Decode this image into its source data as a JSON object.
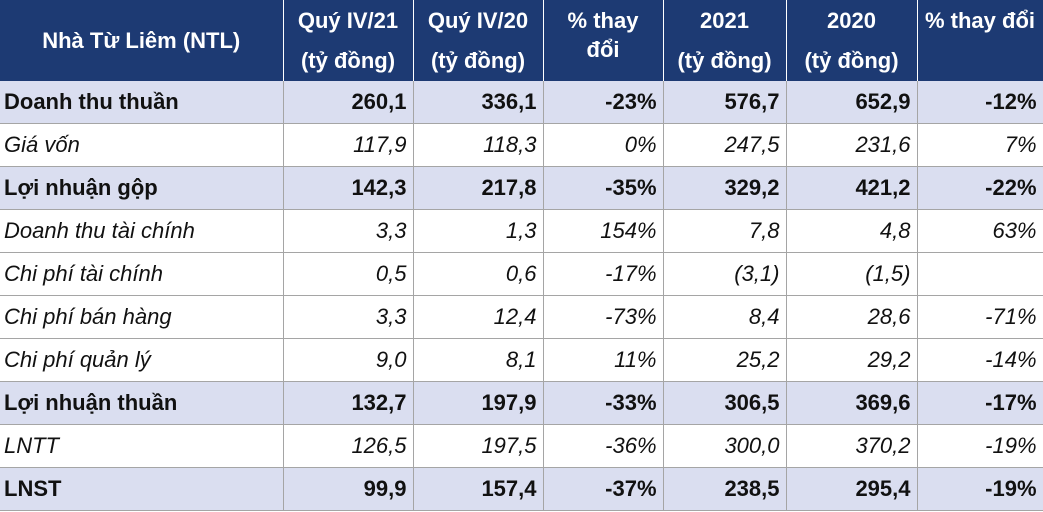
{
  "header": {
    "company": "Nhà Từ Liêm (NTL)",
    "col1_title": "Quý IV/21",
    "col2_title": "Quý IV/20",
    "col3_title": "% thay đổi",
    "col4_title": "2021",
    "col5_title": "2020",
    "col6_title": "% thay đổi",
    "unit": "(tỷ đồng)"
  },
  "rows": [
    {
      "label": "Doanh thu thuần",
      "q421": "260,1",
      "q420": "336,1",
      "qchg": "-23%",
      "y21": "576,7",
      "y20": "652,9",
      "ychg": "-12%",
      "bold": true
    },
    {
      "label": "Giá vốn",
      "q421": "117,9",
      "q420": "118,3",
      "qchg": "0%",
      "y21": "247,5",
      "y20": "231,6",
      "ychg": "7%",
      "bold": false
    },
    {
      "label": "Lợi nhuận gộp",
      "q421": "142,3",
      "q420": "217,8",
      "qchg": "-35%",
      "y21": "329,2",
      "y20": "421,2",
      "ychg": "-22%",
      "bold": true
    },
    {
      "label": "Doanh thu tài chính",
      "q421": "3,3",
      "q420": "1,3",
      "qchg": "154%",
      "y21": "7,8",
      "y20": "4,8",
      "ychg": "63%",
      "bold": false
    },
    {
      "label": "Chi phí tài chính",
      "q421": "0,5",
      "q420": "0,6",
      "qchg": "-17%",
      "y21": "(3,1)",
      "y20": "(1,5)",
      "ychg": "",
      "bold": false
    },
    {
      "label": "Chi phí bán hàng",
      "q421": "3,3",
      "q420": "12,4",
      "qchg": "-73%",
      "y21": "8,4",
      "y20": "28,6",
      "ychg": "-71%",
      "bold": false
    },
    {
      "label": "Chi phí quản lý",
      "q421": "9,0",
      "q420": "8,1",
      "qchg": "11%",
      "y21": "25,2",
      "y20": "29,2",
      "ychg": "-14%",
      "bold": false
    },
    {
      "label": "Lợi nhuận thuần",
      "q421": "132,7",
      "q420": "197,9",
      "qchg": "-33%",
      "y21": "306,5",
      "y20": "369,6",
      "ychg": "-17%",
      "bold": true
    },
    {
      "label": "LNTT",
      "q421": "126,5",
      "q420": "197,5",
      "qchg": "-36%",
      "y21": "300,0",
      "y20": "370,2",
      "ychg": "-19%",
      "bold": false
    },
    {
      "label": "LNST",
      "q421": "99,9",
      "q420": "157,4",
      "qchg": "-37%",
      "y21": "238,5",
      "y20": "295,4",
      "ychg": "-19%",
      "bold": true
    }
  ],
  "colors": {
    "header_bg": "#1d3a73",
    "bold_row_bg": "#dadef0"
  }
}
